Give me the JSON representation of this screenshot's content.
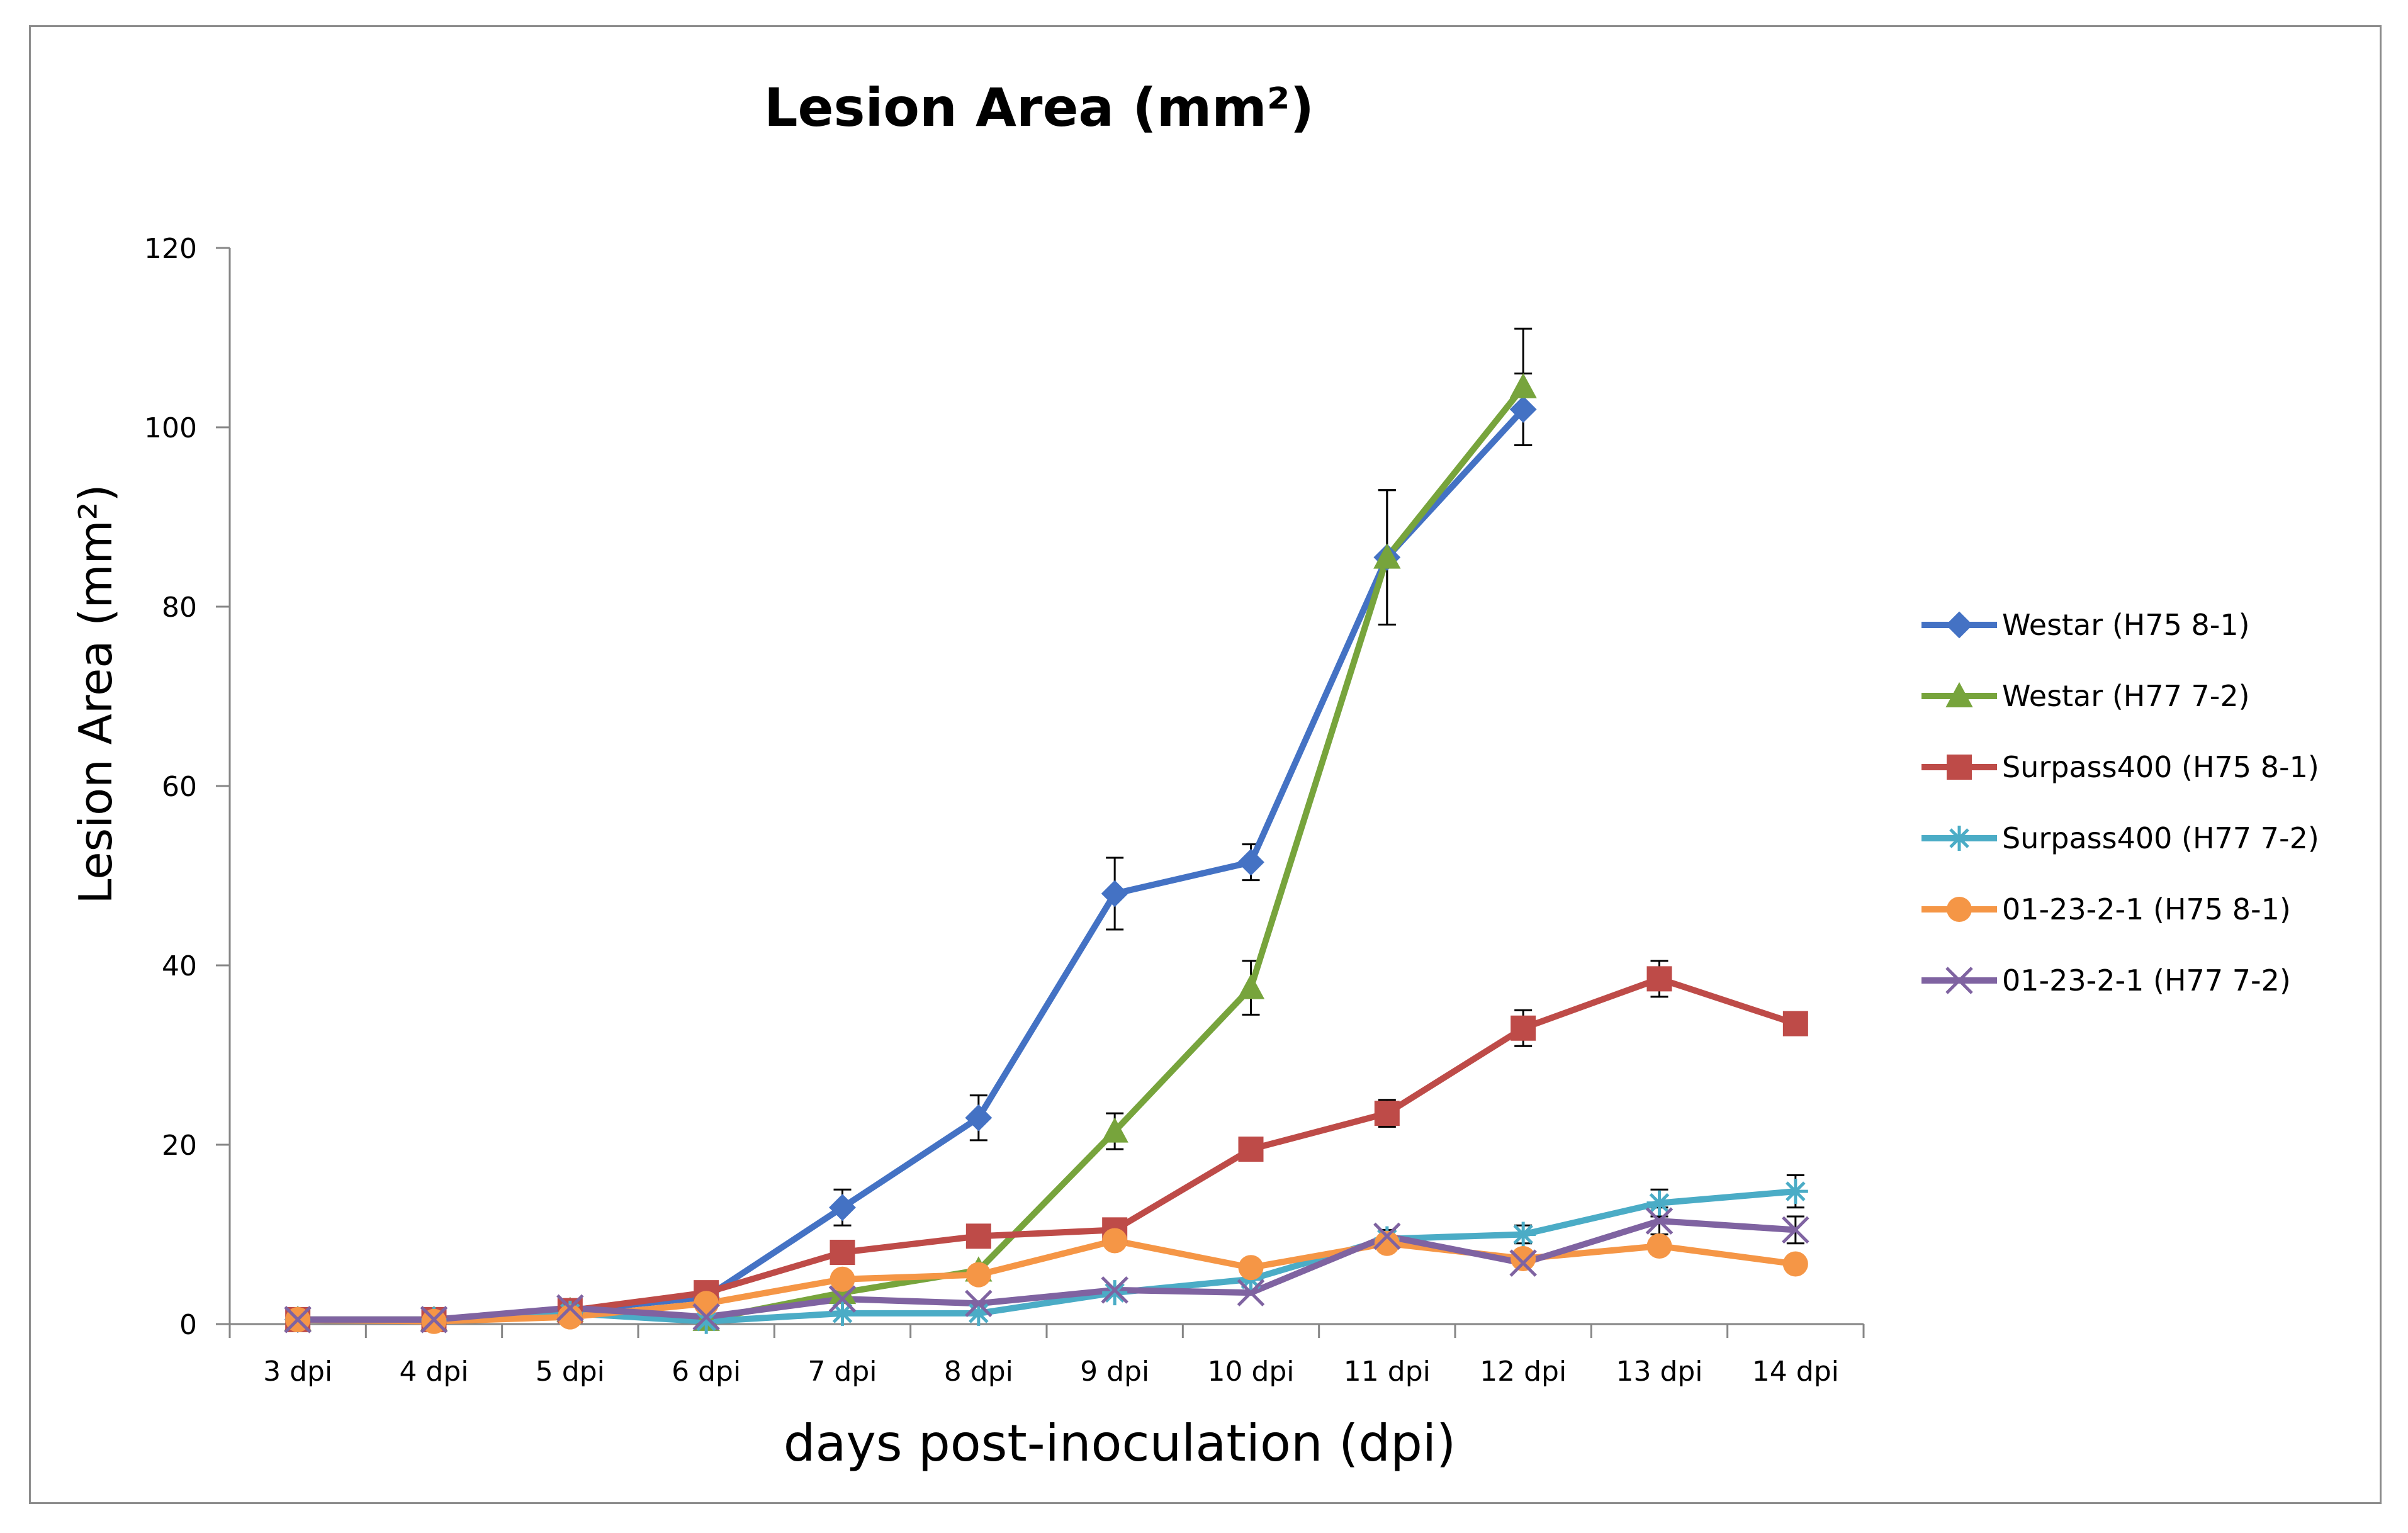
{
  "chart_data": {
    "type": "line",
    "title": "Lesion Area (mm²)",
    "xlabel": "days post-inoculation (dpi)",
    "ylabel": "Lesion Area (mm²)",
    "categories": [
      "3 dpi",
      "4 dpi",
      "5 dpi",
      "6 dpi",
      "7 dpi",
      "8 dpi",
      "9 dpi",
      "10 dpi",
      "11 dpi",
      "12 dpi",
      "13 dpi",
      "14 dpi"
    ],
    "ylim": [
      0,
      120
    ],
    "yticks": [
      0,
      20,
      40,
      60,
      80,
      100,
      120
    ],
    "grid": false,
    "legend_position": "right",
    "series": [
      {
        "name": "Westar (H75 8-1)",
        "color": "#4472C4",
        "marker": "diamond",
        "values": [
          0.5,
          0.5,
          1.5,
          3,
          13,
          23,
          48,
          51.5,
          85.5,
          102,
          null,
          null
        ],
        "errors": [
          0,
          0,
          0,
          0,
          2,
          2.5,
          4,
          2,
          7.5,
          4,
          null,
          null
        ]
      },
      {
        "name": "Westar (H77 7-2)",
        "color": "#77A43C",
        "marker": "triangle",
        "values": [
          0.5,
          0.5,
          1.5,
          0.5,
          3.5,
          6,
          21.5,
          37.5,
          85.5,
          104.5,
          null,
          null
        ],
        "errors": [
          0,
          0,
          0,
          0,
          0,
          0,
          2,
          3,
          7.5,
          6.5,
          null,
          null
        ]
      },
      {
        "name": "Surpass400 (H75 8-1)",
        "color": "#BE4B48",
        "marker": "square",
        "values": [
          0.5,
          0.5,
          1.5,
          3.5,
          8,
          9.8,
          10.5,
          19.5,
          23.5,
          33,
          38.5,
          33.5
        ],
        "errors": [
          0,
          0,
          0,
          0,
          0.8,
          0,
          0,
          1,
          1.5,
          2,
          2,
          0
        ]
      },
      {
        "name": "Surpass400 (H77 7-2)",
        "color": "#4BACC6",
        "marker": "asterisk",
        "values": [
          0.5,
          0.5,
          1.2,
          0.3,
          1.2,
          1.2,
          3.5,
          5,
          9.5,
          10,
          13.5,
          14.8
        ],
        "errors": [
          0,
          0,
          0,
          0,
          0,
          0,
          0,
          0,
          1,
          1,
          1.5,
          1.8
        ]
      },
      {
        "name": "01-23-2-1 (H75 8-1)",
        "color": "#F59646",
        "marker": "circle",
        "values": [
          0.5,
          0.3,
          0.8,
          2.3,
          5,
          5.5,
          9.3,
          6.3,
          9,
          7.3,
          8.7,
          6.7
        ],
        "errors": [
          0,
          0,
          0,
          0,
          0,
          0,
          0,
          0,
          0,
          0,
          0,
          0
        ]
      },
      {
        "name": "01-23-2-1 (H77 7-2)",
        "color": "#7F63A1",
        "marker": "x",
        "values": [
          0.5,
          0.5,
          1.8,
          0.8,
          2.8,
          2.3,
          3.8,
          3.5,
          9.8,
          6.8,
          11.5,
          10.5
        ],
        "errors": [
          0,
          0,
          0,
          0,
          0,
          0,
          0,
          0,
          0,
          0,
          1.5,
          1.5
        ]
      }
    ]
  }
}
